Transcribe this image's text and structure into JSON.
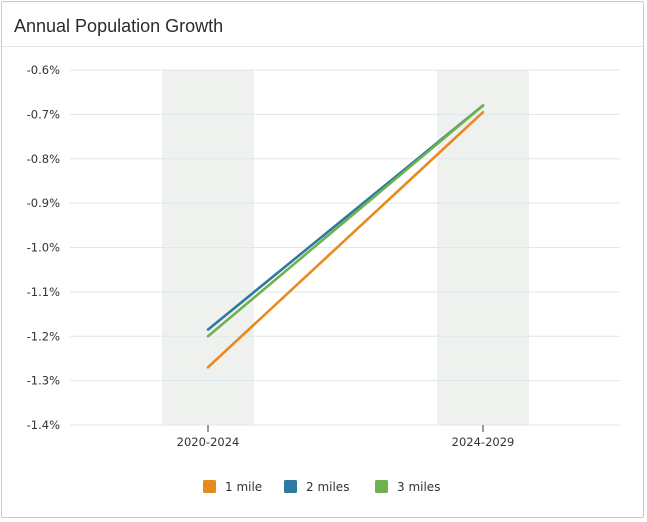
{
  "header": {
    "title": "Annual Population Growth"
  },
  "colors": {
    "band": "#eef1ee",
    "grid": "#dde7ec",
    "axis": "#555555"
  },
  "chart_data": {
    "type": "line",
    "title": "Annual Population Growth",
    "categories": [
      "2020-2024",
      "2024-2029"
    ],
    "y_ticks": [
      "-0.6%",
      "-0.7%",
      "-0.8%",
      "-0.9%",
      "-1.0%",
      "-1.1%",
      "-1.2%",
      "-1.3%",
      "-1.4%"
    ],
    "ylim": [
      -1.4,
      -0.6
    ],
    "y_unit": "%",
    "grid": true,
    "legend_position": "bottom",
    "series": [
      {
        "name": "1 mile",
        "values": [
          -1.27,
          -0.695
        ],
        "color": "#e88a1f"
      },
      {
        "name": "2 miles",
        "values": [
          -1.185,
          -0.68
        ],
        "color": "#2d7aa0"
      },
      {
        "name": "3 miles",
        "values": [
          -1.2,
          -0.68
        ],
        "color": "#6fb04f"
      }
    ]
  }
}
